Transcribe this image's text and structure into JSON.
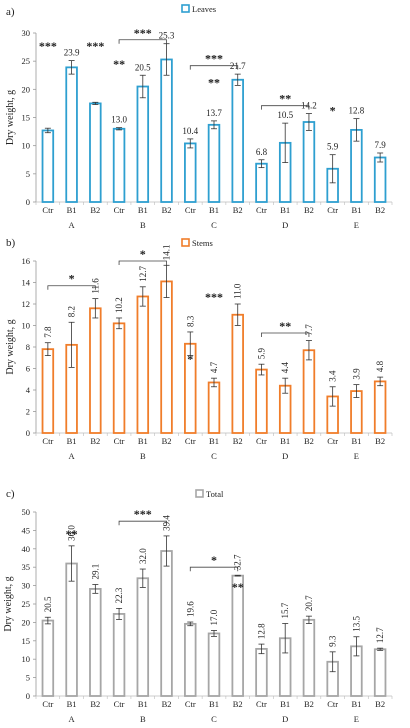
{
  "chart_data": [
    {
      "panel_label": "a)",
      "type": "bar",
      "legend": "Leaves",
      "color": "#2e9fd0",
      "ylabel": "Dry weight, g",
      "ylim": [
        0,
        30
      ],
      "yticks": [
        0,
        5,
        10,
        15,
        20,
        25,
        30
      ],
      "categories": [
        "Ctr",
        "B1",
        "B2",
        "Ctr",
        "B1",
        "B2",
        "Ctr",
        "B1",
        "B2",
        "Ctr",
        "B1",
        "B2",
        "Ctr",
        "B1",
        "B2"
      ],
      "groups": [
        "A",
        "B",
        "C",
        "D",
        "E"
      ],
      "values": [
        12.7,
        23.9,
        17.5,
        13.0,
        20.5,
        25.3,
        10.4,
        13.7,
        21.7,
        6.8,
        10.5,
        14.2,
        5.9,
        12.8,
        7.9
      ],
      "errors": [
        0.4,
        1.2,
        0.2,
        0.2,
        2.0,
        2.8,
        0.8,
        0.7,
        1.0,
        0.7,
        3.5,
        1.5,
        2.5,
        2.0,
        0.8
      ],
      "data_labels": [
        "",
        "23.9",
        "",
        "13.0",
        "20.5",
        "25.3",
        "10.4",
        "13.7",
        "21.7",
        "6.8",
        "10.5",
        "14.2",
        "5.9",
        "12.8",
        "7.9"
      ],
      "annotations": [
        {
          "text": "***",
          "bar": 0,
          "y": 27
        },
        {
          "text": "***",
          "bar": 2,
          "y": 27
        },
        {
          "text": "**",
          "bar": 3,
          "y": 23.8
        },
        {
          "text": "**",
          "bar": 7,
          "y": 20.5
        },
        {
          "text": "*",
          "bar": 12,
          "y": 15.5
        }
      ],
      "brackets": [
        {
          "from": 3,
          "to": 5,
          "y": 28.8,
          "text": "***"
        },
        {
          "from": 6,
          "to": 8,
          "y": 24.2,
          "text": "***"
        },
        {
          "from": 9,
          "to": 11,
          "y": 17.1,
          "text": "**"
        }
      ]
    },
    {
      "panel_label": "b)",
      "type": "bar",
      "legend": "Stems",
      "color": "#f07d2a",
      "ylabel": "Dry weight, g",
      "ylim": [
        0,
        16
      ],
      "yticks": [
        0,
        2,
        4,
        6,
        8,
        10,
        12,
        14,
        16
      ],
      "categories": [
        "Ctr",
        "B1",
        "B2",
        "Ctr",
        "B1",
        "B2",
        "Ctr",
        "B1",
        "B2",
        "Ctr",
        "B1",
        "B2",
        "Ctr",
        "B1",
        "B2"
      ],
      "groups": [
        "A",
        "B",
        "C",
        "D",
        "E"
      ],
      "values": [
        7.8,
        8.2,
        11.6,
        10.2,
        12.7,
        14.1,
        8.3,
        4.7,
        11.0,
        5.9,
        4.4,
        7.7,
        3.4,
        3.9,
        4.8
      ],
      "errors": [
        0.6,
        2.1,
        0.9,
        0.5,
        0.9,
        1.5,
        1.1,
        0.4,
        1.0,
        0.5,
        0.7,
        0.9,
        0.9,
        0.6,
        0.4
      ],
      "data_labels": [
        "7.8",
        "8.2",
        "11.6",
        "10.2",
        "12.7",
        "14.1",
        "8.3",
        "4.7",
        "11.0",
        "5.9",
        "4.4",
        "7.7",
        "3.4",
        "3.9",
        "4.8"
      ],
      "annotations": [
        {
          "text": "*",
          "bar": 6,
          "y": 6.5
        },
        {
          "text": "***",
          "bar": 7,
          "y": 12.3
        }
      ],
      "brackets": [
        {
          "from": 0,
          "to": 2,
          "y": 13.7,
          "text": "*"
        },
        {
          "from": 3,
          "to": 5,
          "y": 16.0,
          "text": "*"
        },
        {
          "from": 9,
          "to": 11,
          "y": 9.3,
          "text": "**"
        }
      ]
    },
    {
      "panel_label": "c)",
      "type": "bar",
      "legend": "Total",
      "color": "#a6a6a6",
      "ylabel": "Dry weight, g",
      "ylim": [
        0,
        50
      ],
      "yticks": [
        0,
        5,
        10,
        15,
        20,
        25,
        30,
        35,
        40,
        45,
        50
      ],
      "categories": [
        "Ctr",
        "B1",
        "B2",
        "Ctr",
        "B1",
        "B2",
        "Ctr",
        "B1",
        "B2",
        "Ctr",
        "B1",
        "B2",
        "Ctr",
        "B1",
        "B2"
      ],
      "groups": [
        "A",
        "B",
        "C",
        "D",
        "E"
      ],
      "values": [
        20.5,
        36.0,
        29.1,
        22.3,
        32.0,
        39.4,
        19.6,
        17.0,
        32.7,
        12.8,
        15.7,
        20.7,
        9.3,
        13.5,
        12.7
      ],
      "errors": [
        0.9,
        4.8,
        1.2,
        1.5,
        2.5,
        4.1,
        0.5,
        0.8,
        0.1,
        1.3,
        4.0,
        1.0,
        2.7,
        2.6,
        0.3
      ],
      "data_labels": [
        "20.5",
        "36.0",
        "29.1",
        "22.3",
        "32.0",
        "39.4",
        "19.6",
        "17.0",
        "32.7",
        "12.8",
        "15.7",
        "20.7",
        "9.3",
        "13.5",
        "12.7"
      ],
      "annotations": [
        {
          "text": "**",
          "bar": 1,
          "y": 43
        },
        {
          "text": "**",
          "bar": 8,
          "y": 28.5
        }
      ],
      "brackets": [
        {
          "from": 3,
          "to": 5,
          "y": 47.5,
          "text": "***"
        },
        {
          "from": 6,
          "to": 8,
          "y": 35.0,
          "text": "*"
        }
      ]
    }
  ]
}
